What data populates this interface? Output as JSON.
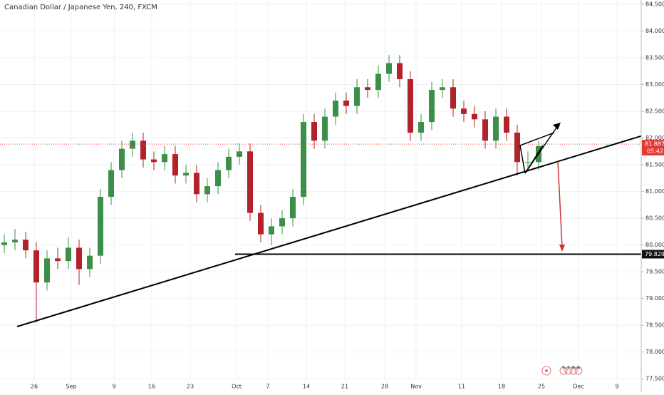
{
  "chart_data": {
    "type": "candlestick",
    "title": "Canadian Dollar / Japanese Yen, 240, FXCM",
    "x": [
      6,
      21,
      36,
      51,
      66,
      81,
      96,
      111,
      126,
      141,
      156,
      171,
      186,
      201,
      216,
      231,
      246,
      261,
      276,
      291,
      306,
      321,
      336,
      351,
      366,
      381,
      396,
      411,
      426,
      441,
      456,
      471,
      486,
      501,
      516,
      531,
      546,
      561,
      576,
      591,
      606,
      621,
      636,
      651,
      666,
      681,
      696,
      711,
      726,
      741,
      756
    ],
    "open": [
      80.0,
      80.05,
      80.1,
      79.9,
      79.3,
      79.75,
      79.7,
      79.95,
      79.55,
      79.8,
      80.9,
      81.4,
      81.8,
      81.95,
      81.6,
      81.55,
      81.7,
      81.3,
      81.35,
      80.95,
      81.1,
      81.4,
      81.65,
      81.75,
      80.6,
      80.2,
      80.35,
      80.5,
      80.9,
      82.3,
      81.95,
      82.4,
      82.7,
      82.6,
      82.95,
      82.9,
      83.2,
      83.4,
      83.1,
      82.1,
      82.3,
      82.9,
      82.95,
      82.55,
      82.45,
      82.35,
      81.95,
      82.4,
      82.1,
      81.55,
      81.55
    ],
    "high": [
      80.2,
      80.3,
      80.25,
      80.05,
      79.9,
      79.95,
      80.15,
      80.1,
      79.95,
      81.05,
      81.55,
      81.95,
      82.1,
      82.1,
      81.75,
      81.85,
      81.85,
      81.5,
      81.5,
      81.25,
      81.55,
      81.8,
      81.9,
      81.9,
      80.75,
      80.5,
      80.65,
      81.05,
      82.45,
      82.45,
      82.55,
      82.85,
      82.85,
      83.1,
      83.1,
      83.35,
      83.55,
      83.55,
      83.25,
      82.45,
      83.05,
      83.1,
      83.1,
      82.7,
      82.6,
      82.5,
      82.55,
      82.55,
      82.25,
      81.75,
      81.95
    ],
    "low": [
      79.85,
      79.9,
      79.75,
      78.55,
      79.15,
      79.55,
      79.55,
      79.25,
      79.4,
      79.65,
      80.75,
      81.25,
      81.65,
      81.45,
      81.4,
      81.4,
      81.15,
      81.15,
      80.8,
      80.8,
      80.95,
      81.25,
      81.5,
      80.45,
      80.05,
      80.0,
      80.2,
      80.35,
      80.75,
      81.8,
      81.8,
      82.25,
      82.45,
      82.45,
      82.75,
      82.75,
      83.05,
      82.95,
      81.95,
      81.95,
      82.15,
      82.75,
      82.4,
      82.3,
      82.2,
      81.8,
      81.8,
      81.95,
      81.3,
      81.4,
      81.4
    ],
    "close": [
      80.05,
      80.1,
      79.9,
      79.3,
      79.75,
      79.7,
      79.95,
      79.55,
      79.8,
      80.9,
      81.4,
      81.8,
      81.95,
      81.6,
      81.55,
      81.7,
      81.3,
      81.35,
      80.95,
      81.1,
      81.4,
      81.65,
      81.75,
      80.6,
      80.2,
      80.35,
      80.5,
      80.9,
      82.3,
      81.95,
      82.4,
      82.7,
      82.6,
      82.95,
      82.9,
      83.2,
      83.4,
      83.1,
      82.1,
      82.3,
      82.9,
      82.95,
      82.55,
      82.45,
      82.35,
      81.95,
      82.4,
      82.1,
      81.55,
      81.55,
      81.85
    ],
    "up_color": "#3b8f47",
    "down_color": "#b2222a",
    "xlim": [
      0,
      900
    ],
    "ylim": [
      77.25,
      84.58
    ],
    "xticks": [
      {
        "value": 48,
        "label": "26"
      },
      {
        "value": 100,
        "label": "Sep"
      },
      {
        "value": 160,
        "label": "9"
      },
      {
        "value": 213,
        "label": "16"
      },
      {
        "value": 267,
        "label": "23"
      },
      {
        "value": 332,
        "label": "Oct"
      },
      {
        "value": 376,
        "label": "7"
      },
      {
        "value": 430,
        "label": "14"
      },
      {
        "value": 484,
        "label": "21"
      },
      {
        "value": 540,
        "label": "28"
      },
      {
        "value": 584,
        "label": "Nov"
      },
      {
        "value": 648,
        "label": "11"
      },
      {
        "value": 704,
        "label": "18"
      },
      {
        "value": 760,
        "label": "25"
      },
      {
        "value": 812,
        "label": "Dec"
      },
      {
        "value": 866,
        "label": "9"
      }
    ],
    "yticks": [
      {
        "value": 77.5,
        "label": "77.500"
      },
      {
        "value": 78,
        "label": "78.000"
      },
      {
        "value": 78.5,
        "label": "78.500"
      },
      {
        "value": 79,
        "label": "79.000"
      },
      {
        "value": 79.5,
        "label": "79.500"
      },
      {
        "value": 80,
        "label": "80.000"
      },
      {
        "value": 80.5,
        "label": "80.500"
      },
      {
        "value": 81,
        "label": "81.000"
      },
      {
        "value": 81.5,
        "label": "81.500"
      },
      {
        "value": 82,
        "label": "82.000"
      },
      {
        "value": 82.5,
        "label": "82.500"
      },
      {
        "value": 83,
        "label": "83.000"
      },
      {
        "value": 83.5,
        "label": "83.500"
      },
      {
        "value": 84,
        "label": "84.000"
      },
      {
        "value": 84.5,
        "label": "84.500"
      }
    ],
    "grid": true,
    "price_line": {
      "value": 81.887,
      "label": "81.887",
      "countdown": "05:42",
      "color": "#e53935"
    },
    "level": {
      "value": 79.829,
      "label": "79.829"
    },
    "event_labels": [
      "5",
      "2",
      "6",
      "6"
    ]
  }
}
